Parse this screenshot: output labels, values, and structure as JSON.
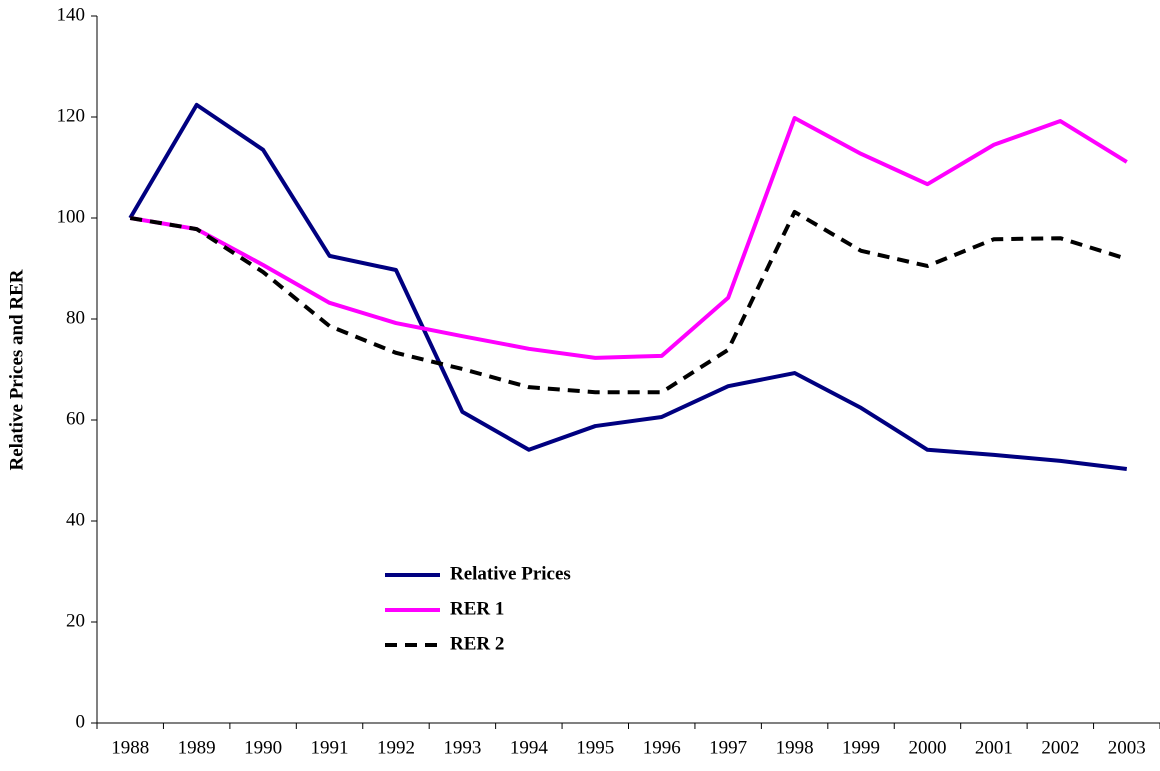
{
  "chart_data": {
    "type": "line",
    "y_label": "Relative Prices and RER",
    "categories": [
      "1988",
      "1989",
      "1990",
      "1991",
      "1992",
      "1993",
      "1994",
      "1995",
      "1996",
      "1997",
      "1998",
      "1999",
      "2000",
      "2001",
      "2002",
      "2003"
    ],
    "series": [
      {
        "name": "Relative Prices",
        "color": "#000080",
        "dashed": false,
        "values": [
          100,
          122.4,
          113.5,
          92.5,
          89.7,
          61.6,
          54.1,
          58.8,
          60.6,
          66.7,
          69.3,
          62.4,
          54.1,
          53.1,
          51.9,
          50.3
        ]
      },
      {
        "name": "RER 1",
        "color": "#ff00ff",
        "dashed": false,
        "values": [
          100,
          97.8,
          90.7,
          83.2,
          79.2,
          76.6,
          74.1,
          72.3,
          72.7,
          84.2,
          119.8,
          112.7,
          106.7,
          114.5,
          119.2,
          111.1
        ]
      },
      {
        "name": "RER 2",
        "color": "#000000",
        "dashed": true,
        "values": [
          100,
          97.8,
          89.3,
          78.6,
          73.3,
          70.1,
          66.5,
          65.5,
          65.5,
          73.9,
          101.2,
          93.5,
          90.5,
          95.8,
          96.0,
          91.9
        ]
      }
    ],
    "ylim": [
      0,
      140
    ],
    "yticks": [
      0,
      20,
      40,
      60,
      80,
      100,
      120,
      140
    ],
    "grid": false
  }
}
